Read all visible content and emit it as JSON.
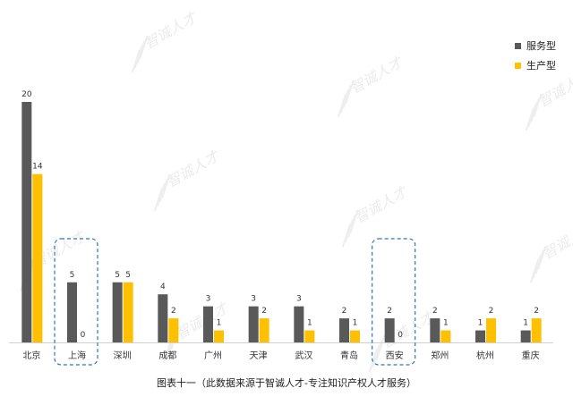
{
  "chart_data": {
    "type": "bar",
    "categories": [
      "北京",
      "上海",
      "深圳",
      "成都",
      "广州",
      "天津",
      "武汉",
      "青岛",
      "西安",
      "郑州",
      "杭州",
      "重庆"
    ],
    "series": [
      {
        "name": "服务型",
        "color": "#595959",
        "values": [
          20,
          5,
          5,
          4,
          3,
          3,
          3,
          2,
          2,
          2,
          1,
          1
        ]
      },
      {
        "name": "生产型",
        "color": "#FFC000",
        "values": [
          14,
          0,
          5,
          2,
          1,
          2,
          1,
          1,
          0,
          1,
          2,
          2
        ]
      }
    ],
    "ylim": [
      0,
      20
    ],
    "highlighted_categories": [
      "上海",
      "西安"
    ],
    "legend_position": "top-right",
    "grid": false
  },
  "caption": "图表十一（此数据来源于智诚人才-专注知识产权人才服务）",
  "watermark": "智诚人才"
}
